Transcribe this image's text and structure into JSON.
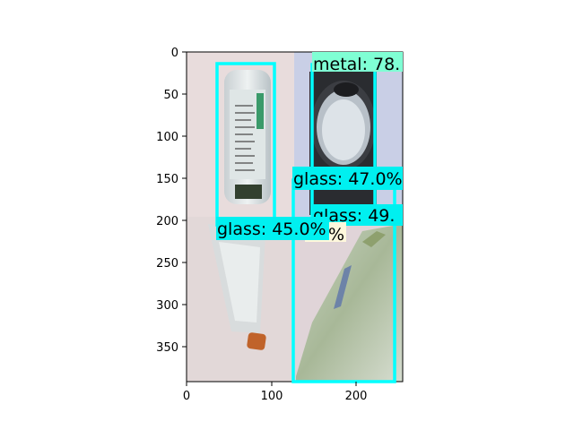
{
  "image": {
    "description_hidden": false,
    "x_ticks": [
      "0",
      "100",
      "200"
    ],
    "y_ticks": [
      "0",
      "50",
      "100",
      "150",
      "200",
      "250",
      "300",
      "350"
    ],
    "colors": {
      "box": "#00ffff",
      "label_bg_glass": "#00f0f0",
      "label_bg_metal": "#7fffd4",
      "label_bg_partial": "#fff8dc",
      "bg_pink": "#e8dcdc",
      "bg_blue": "#c9cfe6"
    }
  },
  "detections": [
    {
      "label": "metal: 78.",
      "class": "metal"
    },
    {
      "label": "glass: 47.0%",
      "class": "glass"
    },
    {
      "label": "glass: 49.",
      "class": "glass"
    },
    {
      "label": "glass: 45.0%",
      "class": "glass"
    },
    {
      "label": "%",
      "class": "partial"
    }
  ]
}
